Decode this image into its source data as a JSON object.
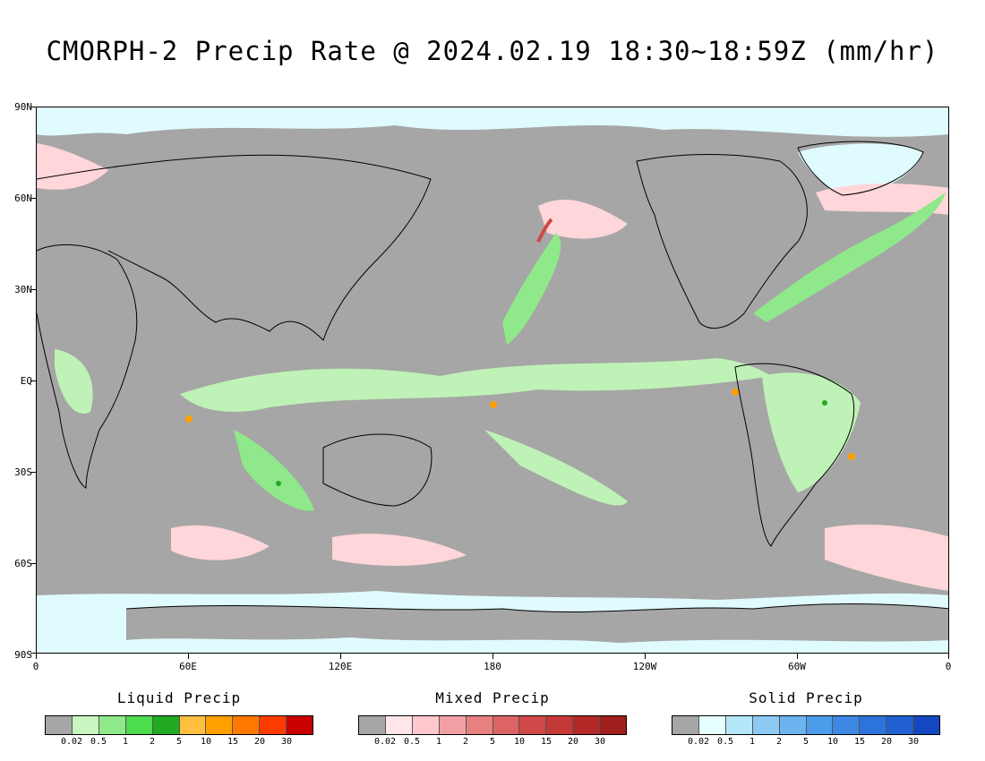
{
  "title": "CMORPH-2 Precip Rate @ 2024.02.19 18:30~18:59Z (mm/hr)",
  "map": {
    "lat_labels": [
      "90N",
      "60N",
      "30N",
      "EQ",
      "30S",
      "60S",
      "90S"
    ],
    "lon_labels": [
      "0",
      "60E",
      "120E",
      "180",
      "120W",
      "60W",
      "0"
    ],
    "background_color": "#a6a6a6"
  },
  "legends": [
    {
      "title": "Liquid Precip",
      "colors": [
        "#a6a6a6",
        "#c8f5c0",
        "#8fe88a",
        "#4cdc4c",
        "#22aa22",
        "#ffc040",
        "#ffa000",
        "#ff7800",
        "#ff3c00",
        "#c80000"
      ],
      "ticks": [
        "0.02",
        "0.5",
        "1",
        "2",
        "5",
        "10",
        "15",
        "20",
        "30"
      ]
    },
    {
      "title": "Mixed Precip",
      "colors": [
        "#a6a6a6",
        "#ffe6ea",
        "#ffc8cc",
        "#f2a0a4",
        "#e88080",
        "#dc6464",
        "#d04848",
        "#c43838",
        "#b42828",
        "#a01e1e"
      ],
      "ticks": [
        "0.02",
        "0.5",
        "1",
        "2",
        "5",
        "10",
        "15",
        "20",
        "30"
      ]
    },
    {
      "title": "Solid Precip",
      "colors": [
        "#a6a6a6",
        "#e6ffff",
        "#b4e8f8",
        "#8ccaf4",
        "#6cb4f0",
        "#4c9cec",
        "#3c88e4",
        "#2c74dc",
        "#2060d0",
        "#1448c0"
      ],
      "ticks": [
        "0.02",
        "0.5",
        "1",
        "2",
        "5",
        "10",
        "15",
        "20",
        "30"
      ]
    }
  ]
}
